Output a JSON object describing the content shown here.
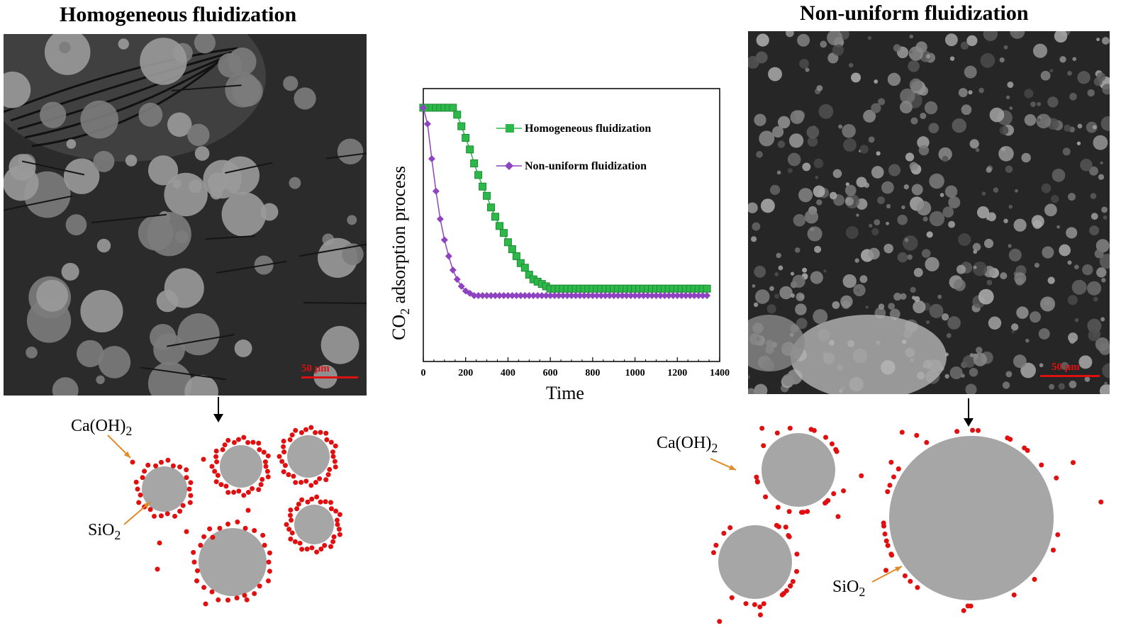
{
  "left_panel": {
    "title": "Homogeneous fluidization",
    "scale_bar": "50 μm",
    "label_caoh2_main": "Ca(OH)",
    "label_caoh2_sub": "2",
    "label_sio2_main": "SiO",
    "label_sio2_sub": "2"
  },
  "right_panel": {
    "title": "Non-uniform fluidization",
    "scale_bar": "50 μm",
    "label_caoh2_main": "Ca(OH)",
    "label_caoh2_sub": "2",
    "label_sio2_main": "SiO",
    "label_sio2_sub": "2"
  },
  "colors": {
    "particle_gray": "#a6a6a6",
    "dot_red": "#e01010",
    "arrow_orange": "#e08a2a",
    "scale_red": "#d11111",
    "homogeneous_series": "#2db84a",
    "nonuniform_series": "#8e44c0"
  },
  "chart_data": {
    "type": "line",
    "xlabel": "Time",
    "ylabel_main": "CO",
    "ylabel_sub": "2",
    "ylabel_rest": " adsorption process",
    "xlim": [
      0,
      1400
    ],
    "ylim": [
      0,
      1
    ],
    "xticks": [
      0,
      200,
      400,
      600,
      800,
      1000,
      1200,
      1400
    ],
    "legend_position": "top-right",
    "series": [
      {
        "name": "Homogeneous fluidization",
        "marker": "square",
        "color": "#2db84a",
        "points": [
          [
            0,
            1.0
          ],
          [
            20,
            1.0
          ],
          [
            40,
            1.0
          ],
          [
            60,
            1.0
          ],
          [
            80,
            1.0
          ],
          [
            100,
            1.0
          ],
          [
            120,
            1.0
          ],
          [
            140,
            1.0
          ],
          [
            160,
            0.97
          ],
          [
            180,
            0.92
          ],
          [
            200,
            0.87
          ],
          [
            220,
            0.82
          ],
          [
            240,
            0.76
          ],
          [
            260,
            0.71
          ],
          [
            280,
            0.66
          ],
          [
            300,
            0.62
          ],
          [
            320,
            0.57
          ],
          [
            340,
            0.53
          ],
          [
            360,
            0.49
          ],
          [
            380,
            0.46
          ],
          [
            400,
            0.42
          ],
          [
            420,
            0.39
          ],
          [
            440,
            0.36
          ],
          [
            460,
            0.33
          ],
          [
            480,
            0.31
          ],
          [
            500,
            0.28
          ],
          [
            520,
            0.26
          ],
          [
            540,
            0.25
          ],
          [
            560,
            0.24
          ],
          [
            580,
            0.23
          ],
          [
            600,
            0.22
          ],
          [
            620,
            0.22
          ],
          [
            650,
            0.22
          ],
          [
            700,
            0.22
          ],
          [
            800,
            0.22
          ],
          [
            900,
            0.22
          ],
          [
            1000,
            0.22
          ],
          [
            1100,
            0.22
          ],
          [
            1200,
            0.22
          ],
          [
            1340,
            0.22
          ]
        ]
      },
      {
        "name": "Non-uniform fluidization",
        "marker": "diamond",
        "color": "#8e44c0",
        "points": [
          [
            0,
            1.0
          ],
          [
            20,
            0.93
          ],
          [
            40,
            0.78
          ],
          [
            60,
            0.64
          ],
          [
            80,
            0.52
          ],
          [
            100,
            0.43
          ],
          [
            120,
            0.36
          ],
          [
            140,
            0.3
          ],
          [
            160,
            0.26
          ],
          [
            180,
            0.23
          ],
          [
            200,
            0.21
          ],
          [
            220,
            0.2
          ],
          [
            240,
            0.19
          ],
          [
            260,
            0.19
          ],
          [
            280,
            0.19
          ],
          [
            300,
            0.19
          ],
          [
            400,
            0.19
          ],
          [
            500,
            0.19
          ],
          [
            600,
            0.19
          ],
          [
            700,
            0.19
          ],
          [
            800,
            0.19
          ],
          [
            900,
            0.19
          ],
          [
            1000,
            0.19
          ],
          [
            1100,
            0.19
          ],
          [
            1200,
            0.19
          ],
          [
            1340,
            0.19
          ]
        ]
      }
    ]
  }
}
